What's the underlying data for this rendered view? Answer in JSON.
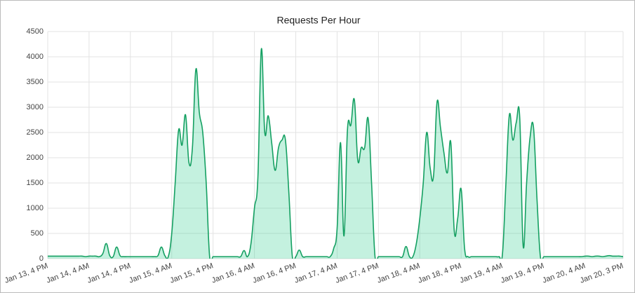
{
  "chart_data": {
    "type": "area",
    "title": "Requests Per Hour",
    "categories": [
      "Jan 13, 4 PM",
      null,
      null,
      null,
      null,
      null,
      null,
      null,
      null,
      null,
      null,
      null,
      "Jan 14, 4 AM",
      null,
      null,
      null,
      null,
      null,
      null,
      null,
      null,
      null,
      null,
      null,
      "Jan 14, 4 PM",
      null,
      null,
      null,
      null,
      null,
      null,
      null,
      null,
      null,
      null,
      null,
      "Jan 15, 4 AM",
      null,
      null,
      null,
      null,
      null,
      null,
      null,
      null,
      null,
      null,
      null,
      "Jan 15, 4 PM",
      null,
      null,
      null,
      null,
      null,
      null,
      null,
      null,
      null,
      null,
      null,
      "Jan 16, 4 AM",
      null,
      null,
      null,
      null,
      null,
      null,
      null,
      null,
      null,
      null,
      null,
      "Jan 16, 4 PM",
      null,
      null,
      null,
      null,
      null,
      null,
      null,
      null,
      null,
      null,
      null,
      "Jan 17, 4 AM",
      null,
      null,
      null,
      null,
      null,
      null,
      null,
      null,
      null,
      null,
      null,
      "Jan 17, 4 PM",
      null,
      null,
      null,
      null,
      null,
      null,
      null,
      null,
      null,
      null,
      null,
      "Jan 18, 4 AM",
      null,
      null,
      null,
      null,
      null,
      null,
      null,
      null,
      null,
      null,
      null,
      "Jan 18, 4 PM",
      null,
      null,
      null,
      null,
      null,
      null,
      null,
      null,
      null,
      null,
      null,
      "Jan 19, 4 AM",
      null,
      null,
      null,
      null,
      null,
      null,
      null,
      null,
      null,
      null,
      null,
      "Jan 19, 4 PM",
      null,
      null,
      null,
      null,
      null,
      null,
      null,
      null,
      null,
      null,
      null,
      "Jan 20, 4 AM",
      null,
      null,
      null,
      null,
      null,
      null,
      null,
      null,
      null,
      null,
      "Jan 20, 3 PM"
    ],
    "values": [
      50,
      50,
      50,
      50,
      50,
      50,
      50,
      50,
      50,
      50,
      50,
      40,
      50,
      50,
      50,
      40,
      100,
      300,
      60,
      40,
      230,
      60,
      40,
      40,
      40,
      40,
      40,
      40,
      40,
      40,
      40,
      40,
      60,
      230,
      60,
      40,
      500,
      1500,
      2550,
      2250,
      2850,
      1900,
      2200,
      3750,
      2900,
      2500,
      1500,
      40,
      40,
      40,
      40,
      40,
      40,
      40,
      40,
      40,
      40,
      160,
      40,
      300,
      1000,
      1600,
      4150,
      2500,
      2830,
      2300,
      1750,
      2200,
      2350,
      2350,
      1300,
      40,
      40,
      170,
      40,
      40,
      40,
      40,
      40,
      40,
      40,
      40,
      40,
      200,
      600,
      2300,
      450,
      2550,
      2650,
      3150,
      1950,
      2200,
      2200,
      2780,
      1500,
      40,
      40,
      40,
      40,
      40,
      40,
      40,
      40,
      40,
      240,
      40,
      40,
      300,
      800,
      1500,
      2500,
      1800,
      1650,
      3100,
      2600,
      2100,
      1700,
      2300,
      550,
      800,
      1380,
      200,
      40,
      40,
      40,
      40,
      40,
      40,
      40,
      40,
      40,
      40,
      100,
      1500,
      2850,
      2350,
      2700,
      2800,
      250,
      1500,
      2400,
      2600,
      1200,
      40,
      40,
      40,
      40,
      40,
      40,
      40,
      40,
      40,
      40,
      40,
      40,
      40,
      50,
      50,
      40,
      50,
      50,
      40,
      50,
      60,
      50,
      50,
      50,
      40
    ],
    "color": "#15a062",
    "fill": "rgba(60,210,150,0.3)",
    "ylim": [
      0,
      4500
    ],
    "yticks": [
      0,
      500,
      1000,
      1500,
      2000,
      2500,
      3000,
      3500,
      4000,
      4500
    ],
    "grid": true
  }
}
